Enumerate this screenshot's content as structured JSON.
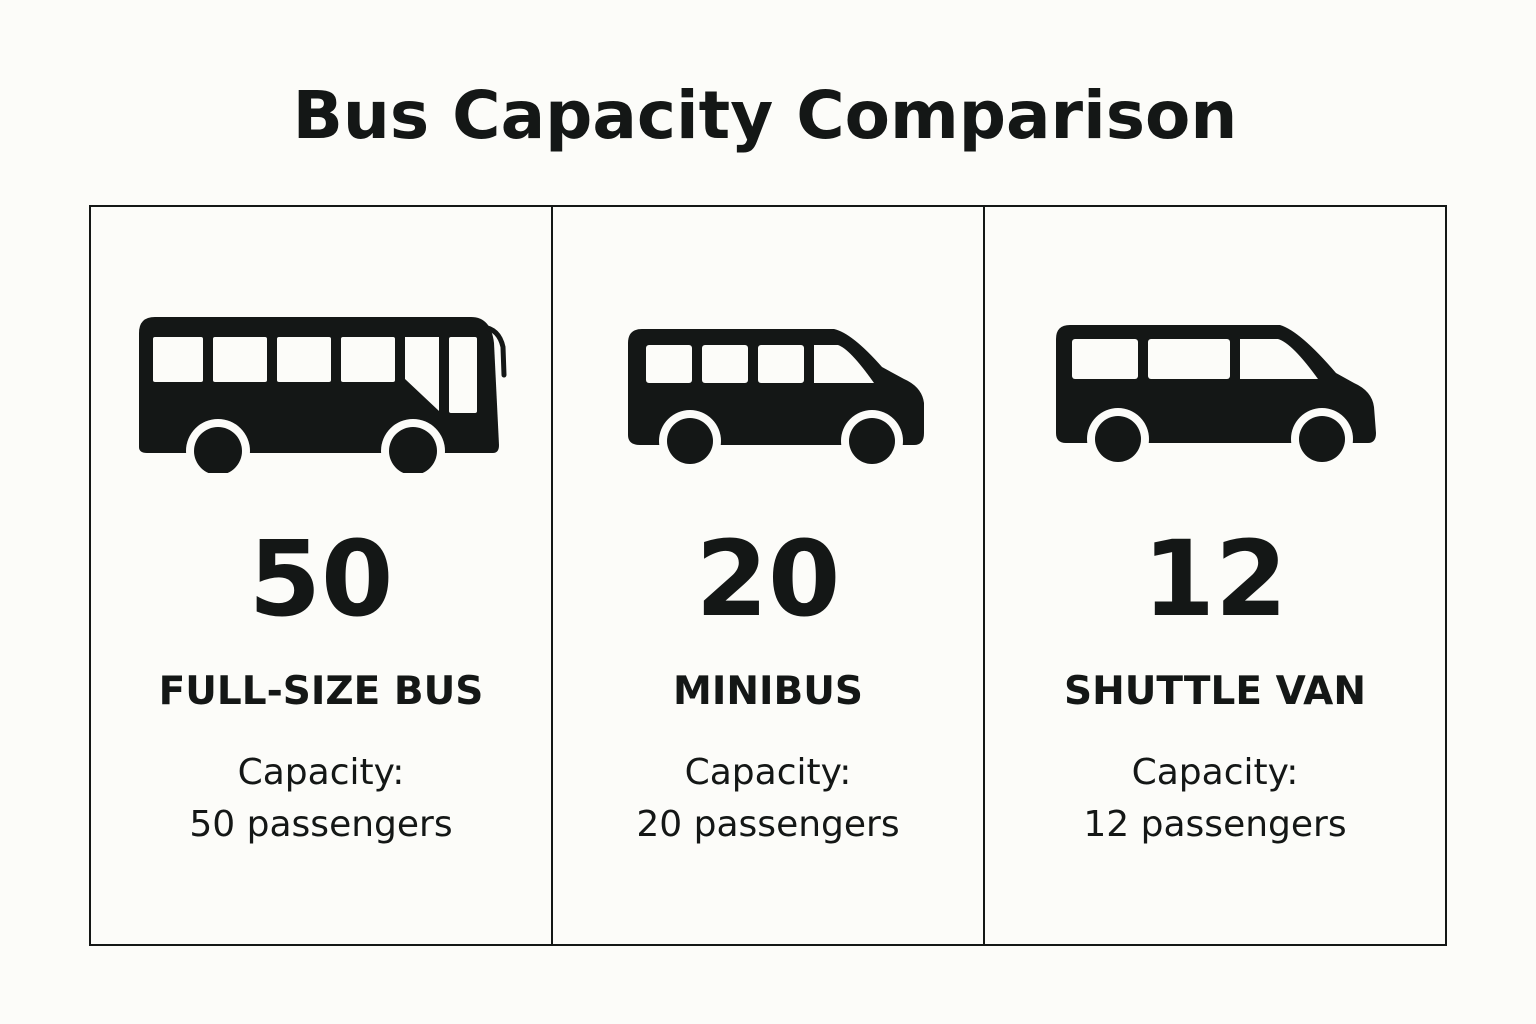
{
  "title": "Bus Capacity Comparison",
  "colors": {
    "background": "#fcfcf9",
    "ink": "#141716"
  },
  "vehicles": [
    {
      "icon": "full-size-bus-icon",
      "number": "50",
      "name": "FULL-SIZE BUS",
      "capacity_label": "Capacity:",
      "capacity_text": "50 passengers"
    },
    {
      "icon": "minibus-icon",
      "number": "20",
      "name": "MINIBUS",
      "capacity_label": "Capacity:",
      "capacity_text": "20 passengers"
    },
    {
      "icon": "shuttle-van-icon",
      "number": "12",
      "name": "SHUTTLE VAN",
      "capacity_label": "Capacity:",
      "capacity_text": "12 passengers"
    }
  ]
}
